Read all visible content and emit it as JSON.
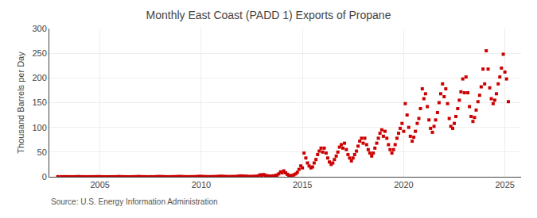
{
  "chart_data": {
    "type": "scatter",
    "title": "Monthly East Coast (PADD 1) Exports of Propane",
    "ylabel": "Thousand Barrels per Day",
    "annotations": [
      "Source: U.S. Energy Information Administration"
    ],
    "color": "#cc0000",
    "marker": "square",
    "grid": true,
    "xlim": [
      2002.5,
      2025.8
    ],
    "xticks": [
      2005,
      2010,
      2015,
      2020,
      2025
    ],
    "ylim": [
      0,
      300
    ],
    "yticks": [
      0,
      50,
      100,
      150,
      200,
      250,
      300
    ],
    "x": [
      2002.92,
      2003.08,
      2003.17,
      2003.25,
      2003.33,
      2003.42,
      2003.5,
      2003.58,
      2003.67,
      2003.75,
      2003.83,
      2003.92,
      2004.0,
      2004.08,
      2004.17,
      2004.25,
      2004.33,
      2004.42,
      2004.5,
      2004.58,
      2004.67,
      2004.75,
      2004.83,
      2004.92,
      2005.0,
      2005.08,
      2005.17,
      2005.25,
      2005.33,
      2005.42,
      2005.5,
      2005.58,
      2005.67,
      2005.75,
      2005.83,
      2005.92,
      2006.0,
      2006.08,
      2006.17,
      2006.25,
      2006.33,
      2006.42,
      2006.5,
      2006.58,
      2006.67,
      2006.75,
      2006.83,
      2006.92,
      2007.0,
      2007.08,
      2007.17,
      2007.25,
      2007.33,
      2007.42,
      2007.5,
      2007.58,
      2007.67,
      2007.75,
      2007.83,
      2007.92,
      2008.0,
      2008.08,
      2008.17,
      2008.25,
      2008.33,
      2008.42,
      2008.5,
      2008.58,
      2008.67,
      2008.75,
      2008.83,
      2008.92,
      2009.0,
      2009.08,
      2009.17,
      2009.25,
      2009.33,
      2009.42,
      2009.5,
      2009.58,
      2009.67,
      2009.75,
      2009.83,
      2009.92,
      2010.0,
      2010.08,
      2010.17,
      2010.25,
      2010.33,
      2010.42,
      2010.5,
      2010.58,
      2010.67,
      2010.75,
      2010.83,
      2010.92,
      2011.0,
      2011.08,
      2011.17,
      2011.25,
      2011.33,
      2011.42,
      2011.5,
      2011.58,
      2011.67,
      2011.75,
      2011.83,
      2011.92,
      2012.0,
      2012.08,
      2012.17,
      2012.25,
      2012.33,
      2012.42,
      2012.5,
      2012.58,
      2012.67,
      2012.75,
      2012.83,
      2012.92,
      2013.0,
      2013.08,
      2013.17,
      2013.25,
      2013.33,
      2013.42,
      2013.5,
      2013.58,
      2013.67,
      2013.75,
      2013.83,
      2013.92,
      2014.0,
      2014.08,
      2014.17,
      2014.25,
      2014.33,
      2014.42,
      2014.5,
      2014.58,
      2014.67,
      2014.75,
      2014.83,
      2014.92,
      2015.0,
      2015.08,
      2015.17,
      2015.25,
      2015.33,
      2015.42,
      2015.5,
      2015.58,
      2015.67,
      2015.75,
      2015.83,
      2015.92,
      2016.0,
      2016.08,
      2016.17,
      2016.25,
      2016.33,
      2016.42,
      2016.5,
      2016.58,
      2016.67,
      2016.75,
      2016.83,
      2016.92,
      2017.0,
      2017.08,
      2017.17,
      2017.25,
      2017.33,
      2017.42,
      2017.5,
      2017.58,
      2017.67,
      2017.75,
      2017.83,
      2017.92,
      2018.0,
      2018.08,
      2018.17,
      2018.25,
      2018.33,
      2018.42,
      2018.5,
      2018.58,
      2018.67,
      2018.75,
      2018.83,
      2018.92,
      2019.0,
      2019.08,
      2019.17,
      2019.25,
      2019.33,
      2019.42,
      2019.5,
      2019.58,
      2019.67,
      2019.75,
      2019.83,
      2019.92,
      2020.0,
      2020.08,
      2020.17,
      2020.25,
      2020.33,
      2020.42,
      2020.5,
      2020.58,
      2020.67,
      2020.75,
      2020.83,
      2020.92,
      2021.0,
      2021.08,
      2021.17,
      2021.25,
      2021.33,
      2021.42,
      2021.5,
      2021.58,
      2021.67,
      2021.75,
      2021.83,
      2021.92,
      2022.0,
      2022.08,
      2022.17,
      2022.25,
      2022.33,
      2022.42,
      2022.5,
      2022.58,
      2022.67,
      2022.75,
      2022.83,
      2022.92,
      2023.0,
      2023.08,
      2023.17,
      2023.25,
      2023.33,
      2023.42,
      2023.5,
      2023.58,
      2023.67,
      2023.75,
      2023.83,
      2023.92,
      2024.0,
      2024.08,
      2024.17,
      2024.25,
      2024.33,
      2024.42,
      2024.5,
      2024.58,
      2024.67,
      2024.75,
      2024.83,
      2024.92,
      2025.0,
      2025.08,
      2025.17
    ],
    "values": [
      0.3,
      0.2,
      0.1,
      0.2,
      0.1,
      0.1,
      0.1,
      0.1,
      0.1,
      0.1,
      0.2,
      0.4,
      0.2,
      0.1,
      0.1,
      0.1,
      0.0,
      0.0,
      0.1,
      0.1,
      0.1,
      0.1,
      0.2,
      0.3,
      0.2,
      0.1,
      0.1,
      0.0,
      0.0,
      0.0,
      0.1,
      0.1,
      0.1,
      0.1,
      0.2,
      0.4,
      0.2,
      0.2,
      0.1,
      0.1,
      0.0,
      0.0,
      0.0,
      0.1,
      0.1,
      0.1,
      0.3,
      0.5,
      0.2,
      0.2,
      0.1,
      0.1,
      0.0,
      0.0,
      0.1,
      0.1,
      0.1,
      0.2,
      0.3,
      0.5,
      0.3,
      0.3,
      0.2,
      0.1,
      0.1,
      0.1,
      0.1,
      0.2,
      0.2,
      0.2,
      0.4,
      0.6,
      0.4,
      0.3,
      0.2,
      0.1,
      0.1,
      0.1,
      0.2,
      0.2,
      0.2,
      0.3,
      0.5,
      0.8,
      0.5,
      0.5,
      0.3,
      0.2,
      0.2,
      0.2,
      0.2,
      0.3,
      0.3,
      0.4,
      0.6,
      1.0,
      0.7,
      0.8,
      0.5,
      0.4,
      0.3,
      0.3,
      0.4,
      0.4,
      0.5,
      0.6,
      1.0,
      1.8,
      1.2,
      1.5,
      1.0,
      0.8,
      0.6,
      0.5,
      0.6,
      0.7,
      0.8,
      1.0,
      2.0,
      4.0,
      3.0,
      4.5,
      3.0,
      2.0,
      1.5,
      1.2,
      1.5,
      2.0,
      2.5,
      3.5,
      6.0,
      10.0,
      8.0,
      12.0,
      8.0,
      5.0,
      3.0,
      2.0,
      2.5,
      4.0,
      6.0,
      9.0,
      15.0,
      22.0,
      18.0,
      48.0,
      38.0,
      28.0,
      22.0,
      18.0,
      20.0,
      28.0,
      35.0,
      45.0,
      52.0,
      58.0,
      50.0,
      58.0,
      48.0,
      38.0,
      30.0,
      25.0,
      28.0,
      35.0,
      42.0,
      50.0,
      60.0,
      65.0,
      58.0,
      68.0,
      55.0,
      45.0,
      38.0,
      32.0,
      38.0,
      45.0,
      52.0,
      62.0,
      72.0,
      78.0,
      68.0,
      78.0,
      65.0,
      55.0,
      48.0,
      42.0,
      48.0,
      58.0,
      68.0,
      78.0,
      88.0,
      95.0,
      82.0,
      92.0,
      78.0,
      65.0,
      55.0,
      48.0,
      55.0,
      65.0,
      78.0,
      88.0,
      98.0,
      108.0,
      92.0,
      148.0,
      125.0,
      100.0,
      82.0,
      72.0,
      80.0,
      92.0,
      108.0,
      118.0,
      138.0,
      178.0,
      158.0,
      168.0,
      142.0,
      115.0,
      98.0,
      90.0,
      102.0,
      115.0,
      130.0,
      150.0,
      168.0,
      188.0,
      162.0,
      178.0,
      148.0,
      118.0,
      102.0,
      98.0,
      108.0,
      122.0,
      138.0,
      155.0,
      172.0,
      198.0,
      170.0,
      202.0,
      170.0,
      142.0,
      122.0,
      112.0,
      120.0,
      135.0,
      152.0,
      165.0,
      182.0,
      218.0,
      188.0,
      255.0,
      218.0,
      180.0,
      158.0,
      148.0,
      155.0,
      168.0,
      188.0,
      202.0,
      220.0,
      248.0,
      212.0,
      198.0,
      152.0
    ]
  }
}
